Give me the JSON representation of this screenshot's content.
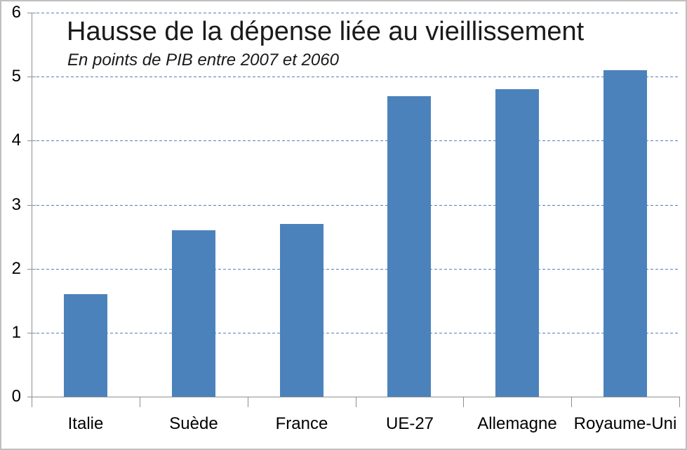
{
  "chart_data": {
    "type": "bar",
    "title": "Hausse de la dépense liée au vieillissement",
    "subtitle": "En points de PIB entre 2007 et 2060",
    "categories": [
      "Italie",
      "Suède",
      "France",
      "UE-27",
      "Allemagne",
      "Royaume-Uni"
    ],
    "values": [
      1.6,
      2.6,
      2.7,
      4.7,
      4.8,
      5.1
    ],
    "xlabel": "",
    "ylabel": "",
    "ylim": [
      0,
      6
    ],
    "yticks": [
      0,
      1,
      2,
      3,
      4,
      5,
      6
    ],
    "grid": "horizontal-dashed",
    "legend_position": "none",
    "colors": {
      "bar": "#4b82bc",
      "gridline": "#4f81bd",
      "axis": "#8e8e8e",
      "text": "#000000",
      "title_text": "#1a1a1a",
      "frame_border": "#bfbfbf",
      "background": "#ffffff"
    }
  }
}
